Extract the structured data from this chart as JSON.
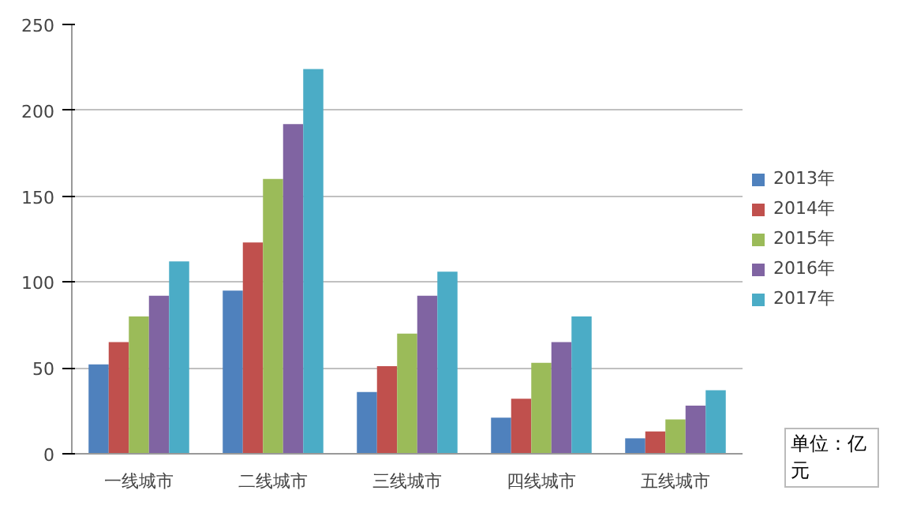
{
  "chart_data": {
    "type": "bar",
    "categories": [
      "一线城市",
      "二线城市",
      "三线城市",
      "四线城市",
      "五线城市"
    ],
    "series": [
      {
        "name": "2013年",
        "color": "#4f81bd",
        "values": [
          52,
          95,
          36,
          21,
          9
        ]
      },
      {
        "name": "2014年",
        "color": "#c0504d",
        "values": [
          65,
          123,
          51,
          32,
          13
        ]
      },
      {
        "name": "2015年",
        "color": "#9bbb59",
        "values": [
          80,
          160,
          70,
          53,
          20
        ]
      },
      {
        "name": "2016年",
        "color": "#8064a2",
        "values": [
          92,
          192,
          92,
          65,
          28
        ]
      },
      {
        "name": "2017年",
        "color": "#4bacc6",
        "values": [
          112,
          224,
          106,
          80,
          37
        ]
      }
    ],
    "ylim": [
      0,
      250
    ],
    "yticks": [
      0,
      50,
      100,
      150,
      200,
      250
    ],
    "grid": "y",
    "legend": "right",
    "annotations": [
      "单位：亿元"
    ]
  }
}
